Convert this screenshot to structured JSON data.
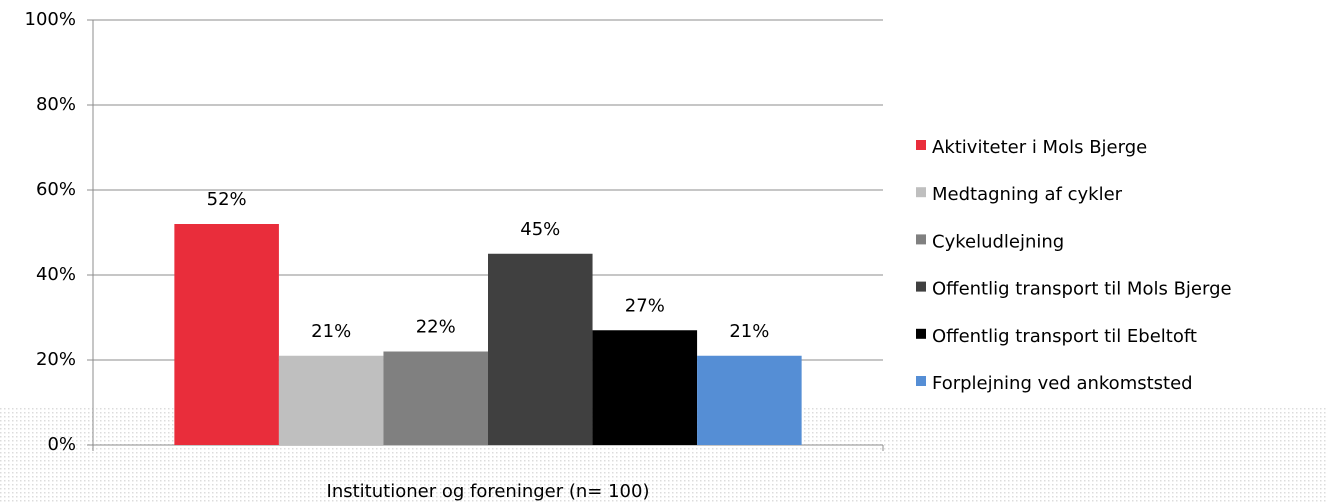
{
  "chart_data": {
    "type": "bar",
    "categories": [
      "Institutioner og foreninger (n= 100)"
    ],
    "series": [
      {
        "name": "Aktiviteter i Mols Bjerge",
        "color": "#e92d3b",
        "values": [
          52
        ],
        "value_labels": [
          "52%"
        ]
      },
      {
        "name": "Medtagning af cykler",
        "color": "#bfbfbf",
        "values": [
          21
        ],
        "value_labels": [
          "21%"
        ]
      },
      {
        "name": "Cykeludlejning",
        "color": "#808080",
        "values": [
          22
        ],
        "value_labels": [
          "22%"
        ]
      },
      {
        "name": "Offentlig transport til Mols Bjerge",
        "color": "#404040",
        "values": [
          45
        ],
        "value_labels": [
          "45%"
        ]
      },
      {
        "name": "Offentlig transport til Ebeltoft",
        "color": "#000000",
        "values": [
          27
        ],
        "value_labels": [
          "27%"
        ]
      },
      {
        "name": "Forplejning ved ankomststed",
        "color": "#558ed5",
        "values": [
          21
        ],
        "value_labels": [
          "21%"
        ]
      }
    ],
    "ylim": [
      0,
      100
    ],
    "yticks": [
      {
        "value": 0,
        "label": "0%"
      },
      {
        "value": 20,
        "label": "20%"
      },
      {
        "value": 40,
        "label": "40%"
      },
      {
        "value": 60,
        "label": "60%"
      },
      {
        "value": 80,
        "label": "80%"
      },
      {
        "value": 100,
        "label": "100%"
      }
    ],
    "grid": true,
    "legend": "right"
  }
}
